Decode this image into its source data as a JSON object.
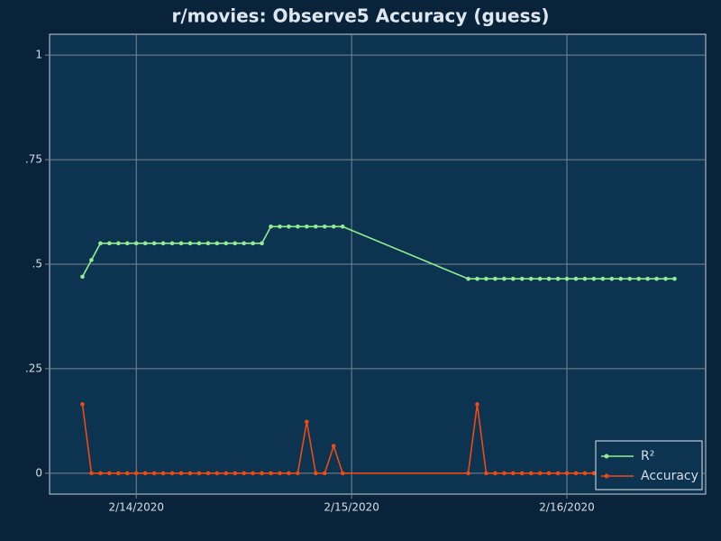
{
  "chart_data": {
    "type": "line",
    "title": "r/movies: Observe5 Accuracy (guess)",
    "x": [
      "2020-02-13T18:00",
      "2020-02-13T19:00",
      "2020-02-13T20:00",
      "2020-02-13T21:00",
      "2020-02-13T22:00",
      "2020-02-13T23:00",
      "2020-02-14T00:00",
      "2020-02-14T01:00",
      "2020-02-14T02:00",
      "2020-02-14T03:00",
      "2020-02-14T04:00",
      "2020-02-14T05:00",
      "2020-02-14T06:00",
      "2020-02-14T07:00",
      "2020-02-14T08:00",
      "2020-02-14T09:00",
      "2020-02-14T10:00",
      "2020-02-14T11:00",
      "2020-02-14T12:00",
      "2020-02-14T13:00",
      "2020-02-14T14:00",
      "2020-02-14T15:00",
      "2020-02-14T16:00",
      "2020-02-14T17:00",
      "2020-02-14T18:00",
      "2020-02-14T19:00",
      "2020-02-14T20:00",
      "2020-02-14T21:00",
      "2020-02-14T22:00",
      "2020-02-14T23:00",
      "2020-02-15T13:00",
      "2020-02-15T14:00",
      "2020-02-15T15:00",
      "2020-02-15T16:00",
      "2020-02-15T17:00",
      "2020-02-15T18:00",
      "2020-02-15T19:00",
      "2020-02-15T20:00",
      "2020-02-15T21:00",
      "2020-02-15T22:00",
      "2020-02-15T23:00",
      "2020-02-16T00:00",
      "2020-02-16T01:00",
      "2020-02-16T02:00",
      "2020-02-16T03:00",
      "2020-02-16T04:00",
      "2020-02-16T05:00",
      "2020-02-16T06:00",
      "2020-02-16T07:00",
      "2020-02-16T08:00",
      "2020-02-16T09:00",
      "2020-02-16T10:00",
      "2020-02-16T11:00",
      "2020-02-16T12:00"
    ],
    "series": [
      {
        "name": "R²",
        "color": "#90ee90",
        "values": [
          0.47,
          0.51,
          0.55,
          0.55,
          0.55,
          0.55,
          0.55,
          0.55,
          0.55,
          0.55,
          0.55,
          0.55,
          0.55,
          0.55,
          0.55,
          0.55,
          0.55,
          0.55,
          0.55,
          0.55,
          0.55,
          0.59,
          0.59,
          0.59,
          0.59,
          0.59,
          0.59,
          0.59,
          0.59,
          0.59,
          0.465,
          0.465,
          0.465,
          0.465,
          0.465,
          0.465,
          0.465,
          0.465,
          0.465,
          0.465,
          0.465,
          0.465,
          0.465,
          0.465,
          0.465,
          0.465,
          0.465,
          0.465,
          0.465,
          0.465,
          0.465,
          0.465,
          0.465,
          0.465
        ]
      },
      {
        "name": "Accuracy",
        "color": "#f04a14",
        "values": [
          0.165,
          0,
          0,
          0,
          0,
          0,
          0,
          0,
          0,
          0,
          0,
          0,
          0,
          0,
          0,
          0,
          0,
          0,
          0,
          0,
          0,
          0,
          0,
          0,
          0,
          0.123,
          0,
          0,
          0.065,
          0,
          0,
          0.165,
          0,
          0,
          0,
          0,
          0,
          0,
          0,
          0,
          0,
          0,
          0,
          0,
          0,
          0,
          0,
          0,
          0,
          0,
          0,
          0,
          0,
          0
        ]
      }
    ],
    "xlim": [
      "2020-02-13T14:20",
      "2020-02-16T15:28"
    ],
    "xticks": [
      {
        "value": "2020-02-14T00:00",
        "label": "2/14/2020"
      },
      {
        "value": "2020-02-15T00:00",
        "label": "2/15/2020"
      },
      {
        "value": "2020-02-16T00:00",
        "label": "2/16/2020"
      }
    ],
    "ylim": [
      -0.05,
      1.05
    ],
    "yticks": [
      0,
      {
        "value": 0.25,
        "label": ".25"
      },
      {
        "value": 0.5,
        "label": ".5"
      },
      {
        "value": 0.75,
        "label": ".75"
      },
      1
    ],
    "grid": true,
    "legend": "lower right"
  }
}
